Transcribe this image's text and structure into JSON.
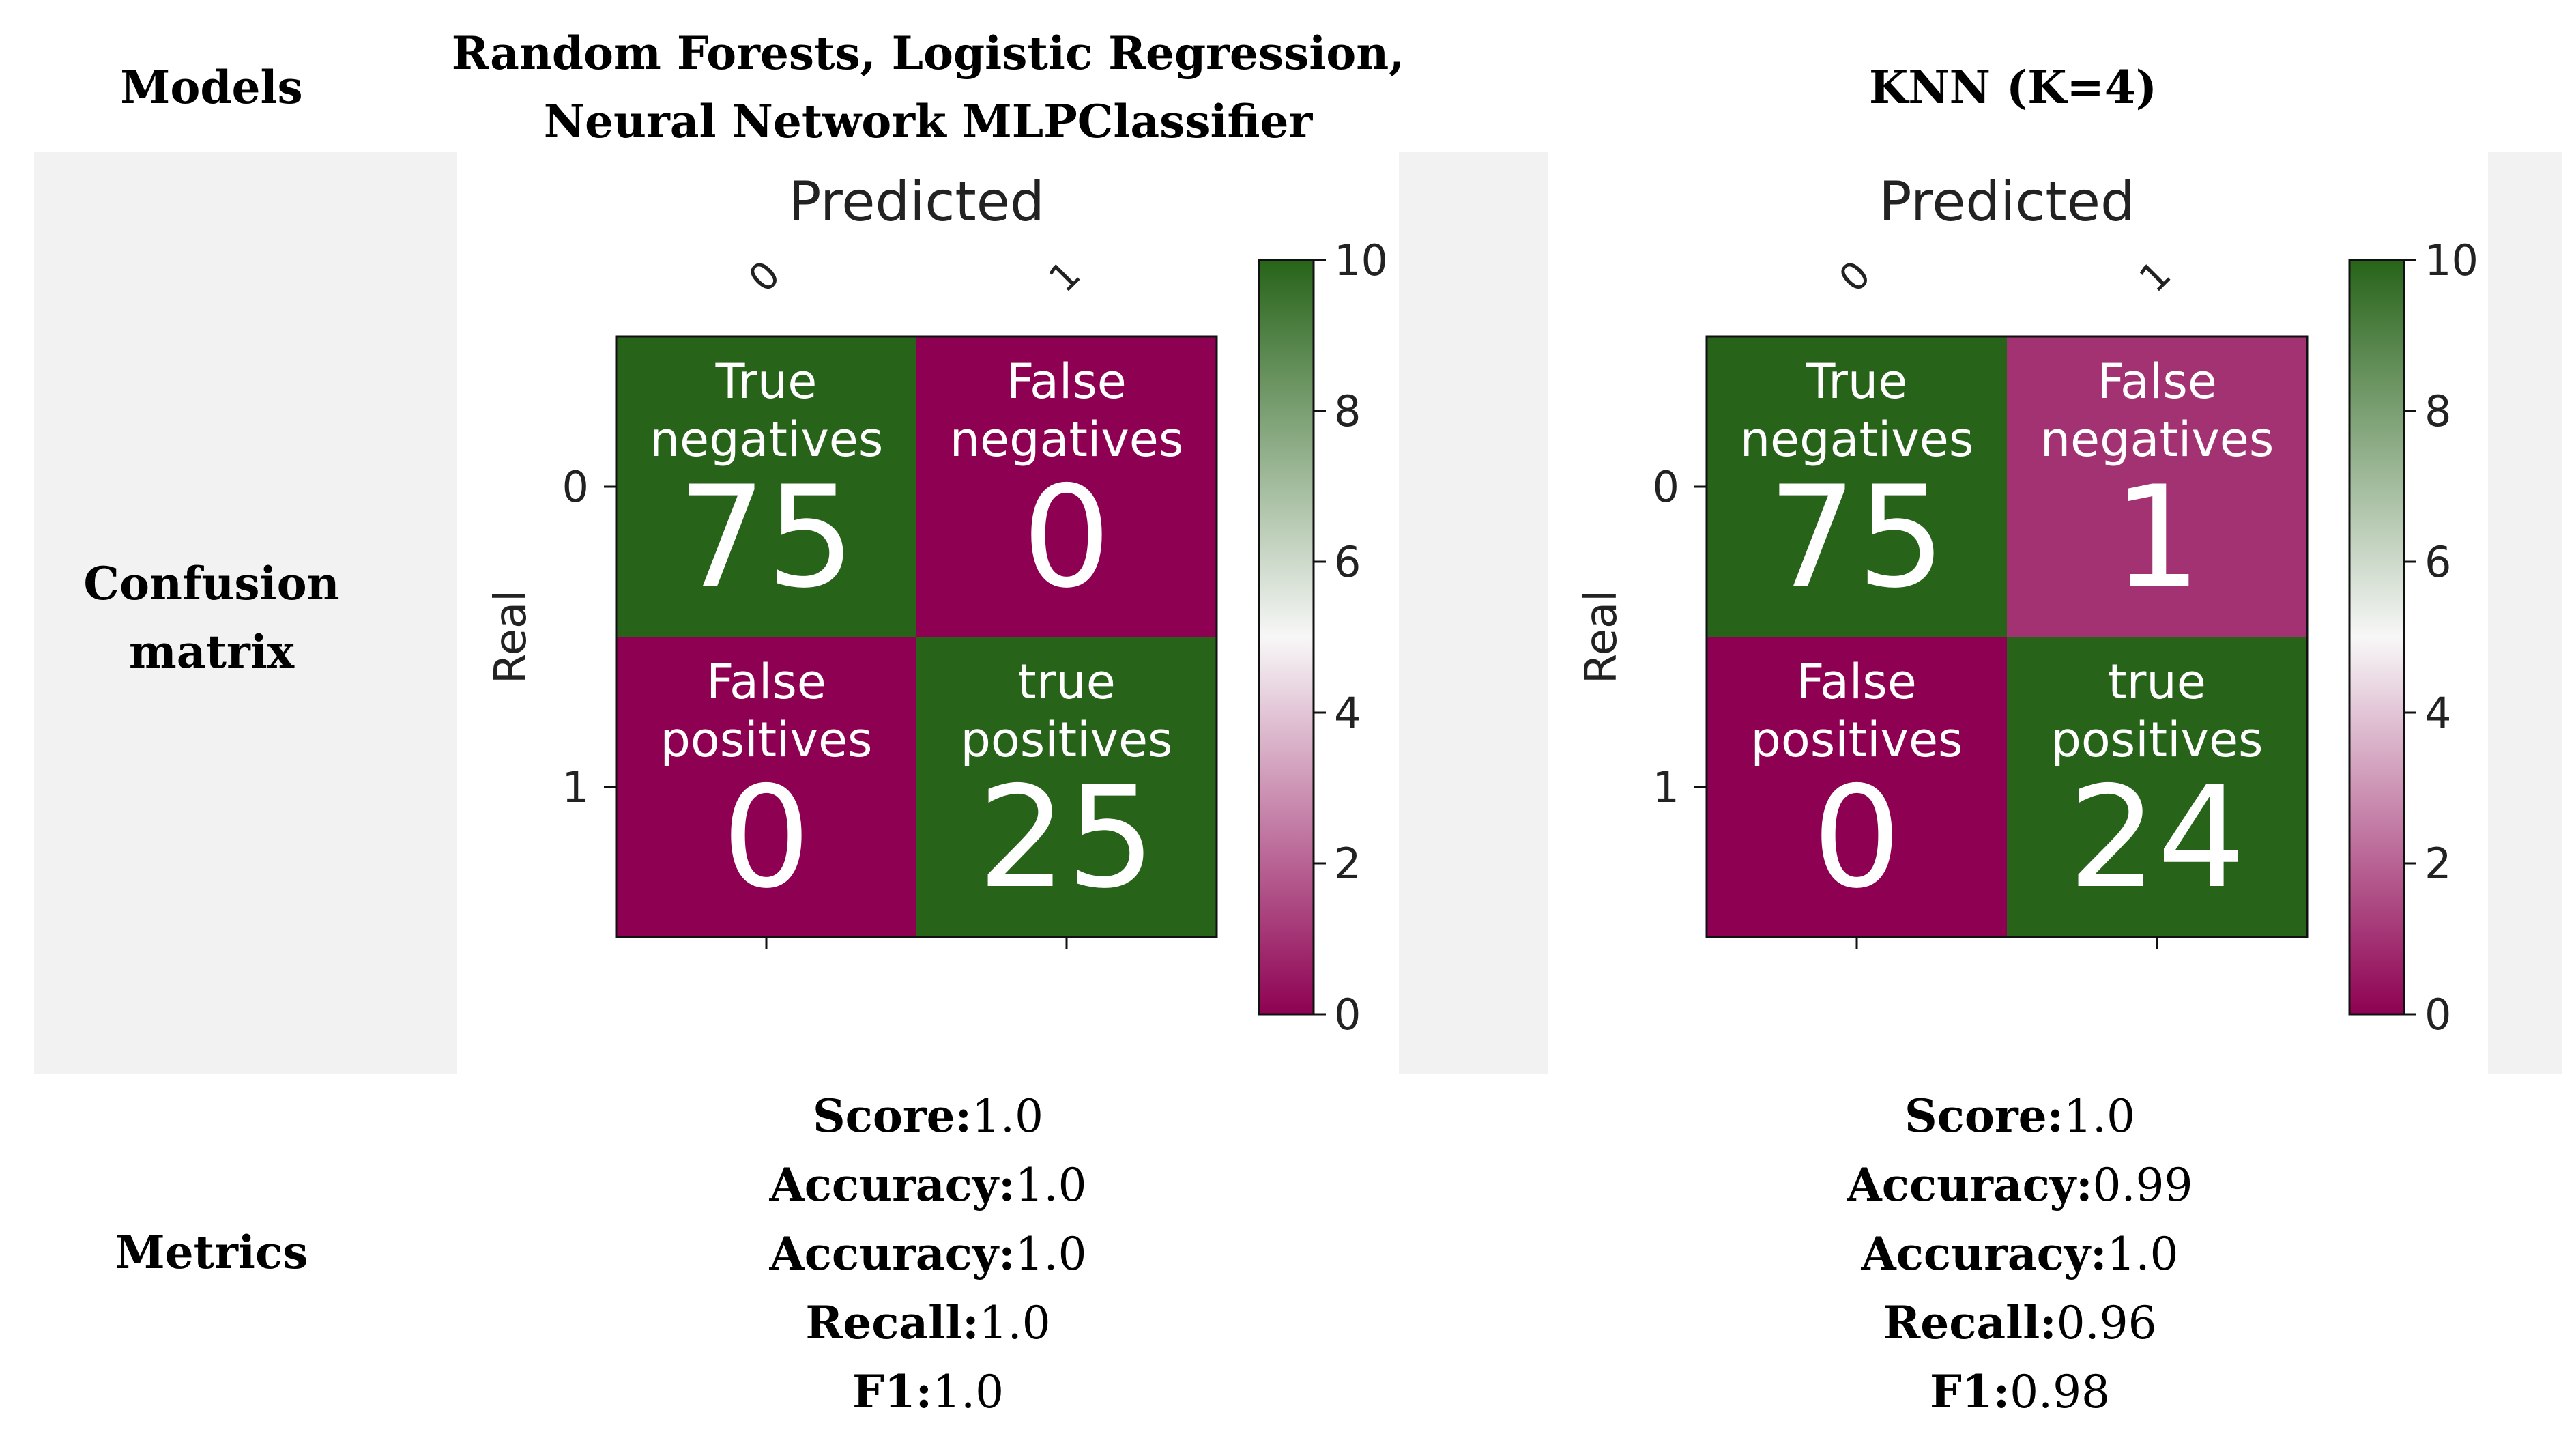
{
  "header": {
    "col1_label": "Models",
    "col2_line1": "Random Forests, Logistic Regression,",
    "col2_line2": "Neural Network MLPClassifier",
    "col3_label": "KNN (K=4)"
  },
  "rows": {
    "confusion_line1": "Confusion",
    "confusion_line2": "matrix",
    "metrics_label": "Metrics"
  },
  "metrics": [
    {
      "items": [
        {
          "label": "Score:",
          "value": "1.0"
        },
        {
          "label": "Accuracy:",
          "value": "1.0"
        },
        {
          "label": "Accuracy:",
          "value": "1.0"
        },
        {
          "label": "Recall:",
          "value": "1.0"
        },
        {
          "label": "F1:",
          "value": "1.0"
        }
      ]
    },
    {
      "items": [
        {
          "label": "Score:",
          "value": "1.0"
        },
        {
          "label": "Accuracy:",
          "value": "0.99"
        },
        {
          "label": "Accuracy:",
          "value": "1.0"
        },
        {
          "label": "Recall:",
          "value": "0.96"
        },
        {
          "label": "F1:",
          "value": "0.98"
        }
      ]
    }
  ],
  "chart_data": [
    {
      "type": "heatmap",
      "title": "Predicted",
      "ylabel": "Real",
      "x_ticks": [
        "0",
        "1"
      ],
      "y_ticks": [
        "0",
        "1"
      ],
      "cells": [
        [
          {
            "label1": "True",
            "label2": "negatives",
            "value": 75
          },
          {
            "label1": "False",
            "label2": "negatives",
            "value": 0
          }
        ],
        [
          {
            "label1": "False",
            "label2": "positives",
            "value": 0
          },
          {
            "label1": "true",
            "label2": "positives",
            "value": 25
          }
        ]
      ],
      "colorbar": {
        "min": 0,
        "max": 10,
        "ticks": [
          "0",
          "2",
          "4",
          "6",
          "8",
          "10"
        ]
      },
      "colormap": {
        "low": "#8e0152",
        "mid": "#f7f7f7",
        "high": "#276419"
      }
    },
    {
      "type": "heatmap",
      "title": "Predicted",
      "ylabel": "Real",
      "x_ticks": [
        "0",
        "1"
      ],
      "y_ticks": [
        "0",
        "1"
      ],
      "cells": [
        [
          {
            "label1": "True",
            "label2": "negatives",
            "value": 75
          },
          {
            "label1": "False",
            "label2": "negatives",
            "value": 1
          }
        ],
        [
          {
            "label1": "False",
            "label2": "positives",
            "value": 0
          },
          {
            "label1": "true",
            "label2": "positives",
            "value": 24
          }
        ]
      ],
      "colorbar": {
        "min": 0,
        "max": 10,
        "ticks": [
          "0",
          "2",
          "4",
          "6",
          "8",
          "10"
        ]
      },
      "colormap": {
        "low": "#8e0152",
        "mid": "#f7f7f7",
        "high": "#276419"
      }
    }
  ]
}
